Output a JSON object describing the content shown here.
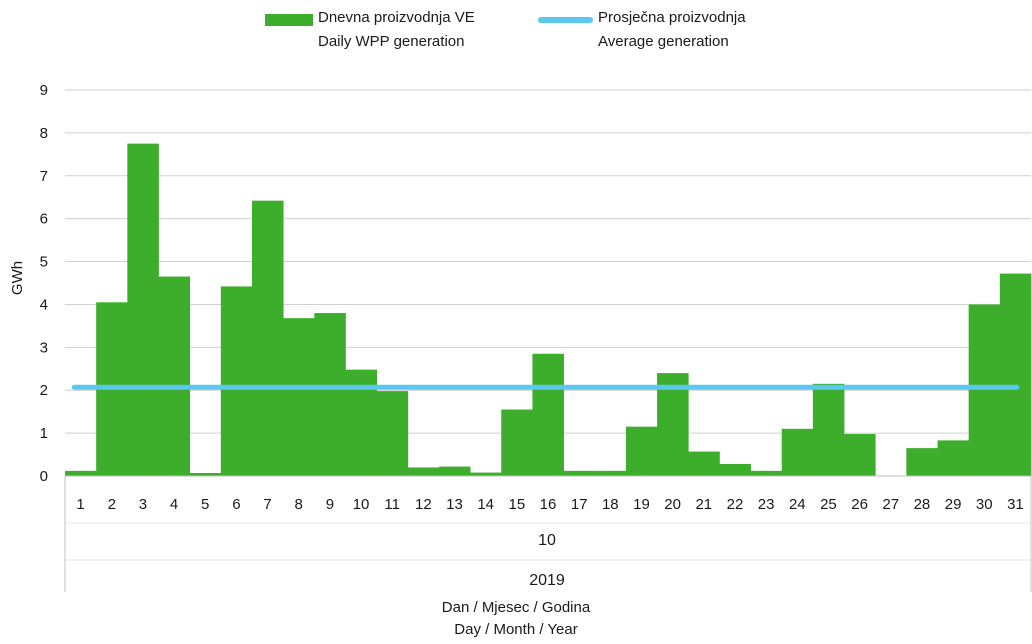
{
  "legend": {
    "bars_line1": "Dnevna proizvodnja VE",
    "bars_line2": "Daily WPP generation",
    "line_line1": "Prosječna proizvodnja",
    "line_line2": "Average generation"
  },
  "colors": {
    "bars": "#3dae2b",
    "average": "#5bc8f0",
    "grid": "#d0d0d0",
    "axis": "#bfbfbf"
  },
  "x_axis": {
    "month": "10",
    "year": "2019",
    "title_line1": "Dan / Mjesec / Godina",
    "title_line2": "Day / Month / Year"
  },
  "chart_data": {
    "type": "bar",
    "categories": [
      "1",
      "2",
      "3",
      "4",
      "5",
      "6",
      "7",
      "8",
      "9",
      "10",
      "11",
      "12",
      "13",
      "14",
      "15",
      "16",
      "17",
      "18",
      "19",
      "20",
      "21",
      "22",
      "23",
      "24",
      "25",
      "26",
      "27",
      "28",
      "29",
      "30",
      "31"
    ],
    "series": [
      {
        "name": "Dnevna proizvodnja VE / Daily WPP generation",
        "type": "bar",
        "values": [
          0.12,
          4.05,
          7.75,
          4.65,
          0.07,
          4.42,
          6.42,
          3.68,
          3.8,
          2.48,
          1.98,
          0.2,
          0.22,
          0.08,
          1.55,
          2.85,
          0.12,
          0.12,
          1.15,
          2.4,
          0.57,
          0.28,
          0.12,
          1.1,
          2.15,
          0.98,
          0.0,
          0.65,
          0.83,
          4.0,
          4.72
        ]
      },
      {
        "name": "Prosječna proizvodnja / Average generation",
        "type": "line",
        "value": 2.07
      }
    ],
    "ylabel": "GWh",
    "xlabel": "Dan / Mjesec / Godina / Day / Month / Year",
    "ylim": [
      0,
      9
    ],
    "yticks": [
      0,
      1,
      2,
      3,
      4,
      5,
      6,
      7,
      8,
      9
    ],
    "grid": true,
    "legend_position": "top"
  }
}
